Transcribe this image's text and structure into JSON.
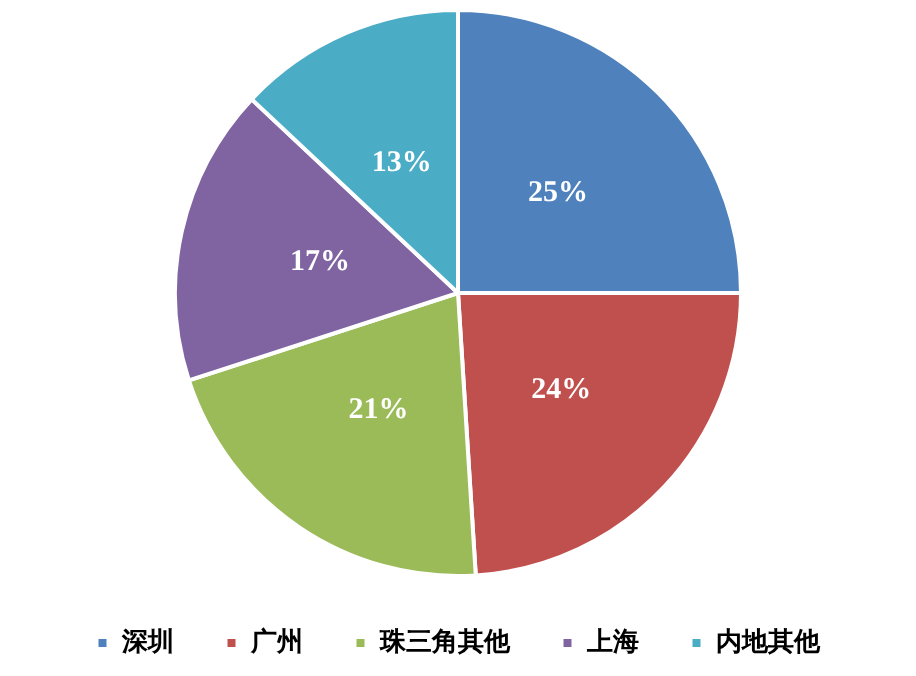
{
  "chart_data": {
    "type": "pie",
    "categories": [
      "深圳",
      "广州",
      "珠三角其他",
      "上海",
      "内地其他"
    ],
    "values": [
      25,
      24,
      21,
      17,
      13
    ],
    "colors": [
      "#4f81bd",
      "#c0504d",
      "#9bbb59",
      "#8064a2",
      "#4bacc6"
    ],
    "value_labels": [
      "25%",
      "24%",
      "21%",
      "17%",
      "13%"
    ],
    "legend": "bottom"
  }
}
